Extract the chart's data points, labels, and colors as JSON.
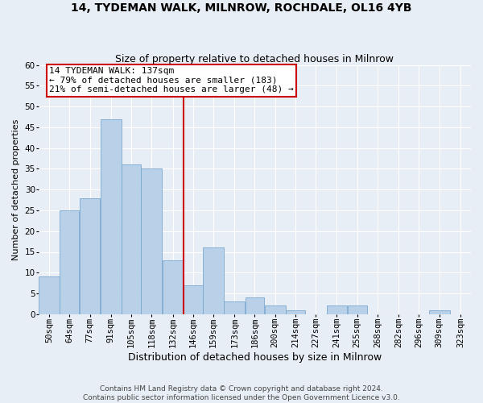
{
  "title_line1": "14, TYDEMAN WALK, MILNROW, ROCHDALE, OL16 4YB",
  "title_line2": "Size of property relative to detached houses in Milnrow",
  "xlabel": "Distribution of detached houses by size in Milnrow",
  "ylabel": "Number of detached properties",
  "bar_color": "#b8d0e8",
  "bar_edge_color": "#7aa8cf",
  "background_color": "#e8eef5",
  "grid_color": "#ffffff",
  "vline_color": "#cc0000",
  "vline_x": 139,
  "annotation_text": "14 TYDEMAN WALK: 137sqm\n← 79% of detached houses are smaller (183)\n21% of semi-detached houses are larger (48) →",
  "annotation_box_facecolor": "#ffffff",
  "annotation_box_edgecolor": "#cc0000",
  "categories": [
    "50sqm",
    "64sqm",
    "77sqm",
    "91sqm",
    "105sqm",
    "118sqm",
    "132sqm",
    "146sqm",
    "159sqm",
    "173sqm",
    "186sqm",
    "200sqm",
    "214sqm",
    "227sqm",
    "241sqm",
    "255sqm",
    "268sqm",
    "282sqm",
    "296sqm",
    "309sqm",
    "323sqm"
  ],
  "bin_edges": [
    43,
    57,
    70,
    84,
    98,
    111,
    125,
    139,
    152,
    166,
    180,
    193,
    207,
    220,
    234,
    248,
    261,
    275,
    289,
    302,
    316,
    330
  ],
  "values": [
    9,
    25,
    28,
    47,
    36,
    35,
    13,
    7,
    16,
    3,
    4,
    2,
    1,
    0,
    2,
    2,
    0,
    0,
    0,
    1,
    0
  ],
  "ylim": [
    0,
    60
  ],
  "yticks": [
    0,
    5,
    10,
    15,
    20,
    25,
    30,
    35,
    40,
    45,
    50,
    55,
    60
  ],
  "footer_line1": "Contains HM Land Registry data © Crown copyright and database right 2024.",
  "footer_line2": "Contains public sector information licensed under the Open Government Licence v3.0.",
  "title1_fontsize": 10,
  "title2_fontsize": 9,
  "xlabel_fontsize": 9,
  "ylabel_fontsize": 8,
  "tick_fontsize": 7.5,
  "footer_fontsize": 6.5,
  "annot_fontsize": 8
}
